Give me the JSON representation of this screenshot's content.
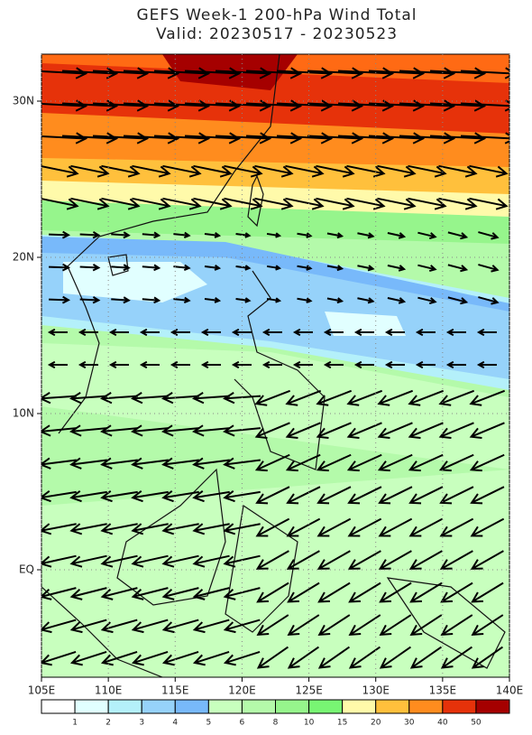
{
  "header": {
    "title": "GEFS Week-1 200-hPa Wind Total",
    "subtitle": "Valid: 20230517 - 20230523"
  },
  "map": {
    "x_ticks": [
      {
        "value": 105,
        "label": "105E"
      },
      {
        "value": 110,
        "label": "110E"
      },
      {
        "value": 115,
        "label": "115E"
      },
      {
        "value": 120,
        "label": "120E"
      },
      {
        "value": 125,
        "label": "125E"
      },
      {
        "value": 130,
        "label": "130E"
      },
      {
        "value": 135,
        "label": "135E"
      },
      {
        "value": 140,
        "label": "140E"
      }
    ],
    "y_ticks": [
      {
        "value": 30,
        "label": "30N"
      },
      {
        "value": 20,
        "label": "20N"
      },
      {
        "value": 10,
        "label": "10N"
      },
      {
        "value": 0,
        "label": "EQ"
      }
    ]
  },
  "colorbar": {
    "labels": [
      1,
      2,
      3,
      4,
      5,
      6,
      8,
      10,
      15,
      20,
      30,
      40,
      50
    ],
    "colors": [
      "#ffffff",
      "#e1ffff",
      "#b4f0fa",
      "#96d2fa",
      "#78b9fa",
      "#c8ffbe",
      "#b4faaa",
      "#96f58c",
      "#78f573",
      "#fffaaa",
      "#ffc03c",
      "#ff8c1e",
      "#e6320a",
      "#a50000"
    ]
  }
}
